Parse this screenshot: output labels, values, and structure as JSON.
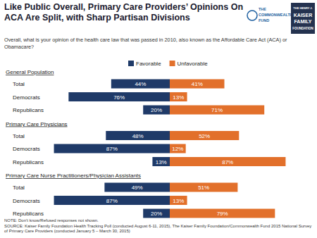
{
  "chart_data": {
    "type": "bar",
    "orientation": "horizontal",
    "title": "Like Public Overall, Primary Care Providers’ Opinions On ACA Are Split, with Sharp Partisan Divisions",
    "subtitle": "Overall, what is your opinion of the health care law that was passed in 2010, also known as the Affordable Care Act (ACA) or Obamacare?",
    "categories": [
      "Total",
      "Democrats",
      "Republicans",
      "Total",
      "Democrats",
      "Republicans",
      "Total",
      "Democrats",
      "Republicans"
    ],
    "groups": [
      {
        "label": "General Population",
        "count": 3
      },
      {
        "label": "Primary Care Physicians",
        "count": 3
      },
      {
        "label": "Primary Care Nurse Practitioners/Physician Assistants",
        "count": 3
      }
    ],
    "series": [
      {
        "name": "Favorable",
        "color": "#1f3a68",
        "values": [
          44,
          76,
          20,
          48,
          87,
          13,
          49,
          87,
          20
        ],
        "value_labels": [
          "44%",
          "76%",
          "20%",
          "48%",
          "87%",
          "13%",
          "49%",
          "87%",
          "20%"
        ]
      },
      {
        "name": "Unfavorable",
        "color": "#e2702b",
        "values": [
          41,
          13,
          71,
          52,
          12,
          87,
          51,
          13,
          79
        ],
        "value_labels": [
          "41%",
          "13%",
          "71%",
          "52%",
          "12%",
          "87%",
          "51%",
          "13%",
          "79%"
        ]
      }
    ],
    "xlim": [
      0,
      100
    ],
    "tick_labels": false,
    "data_labels": true,
    "legend": "top"
  },
  "logos": [
    [
      "THE",
      "COMMONWEALTH",
      "FUND"
    ],
    [
      "THE HENRY J.",
      "KAISER",
      "FAMILY",
      "FOUNDATION"
    ]
  ],
  "note": "NOTE: Don’t know/Refused responses not shown.",
  "source": "SOURCE: Kaiser Family Foundation Health Tracking Poll (conducted August 6-11, 2015), The Kaiser Family Foundation/Commonwealth Fund 2015 National Survey of Primary Care Providers (conducted January 5 – March 30, 2015)"
}
